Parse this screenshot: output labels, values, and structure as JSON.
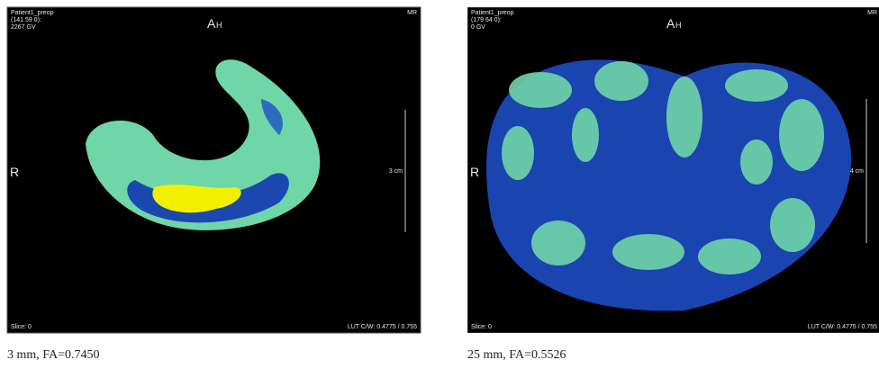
{
  "panels": [
    {
      "patient": "Patient1_preop",
      "coords": "(141 59 0):",
      "voxel": "2267 GV",
      "orientation_top": "A",
      "orientation_top_sub": "H",
      "modality": "MR",
      "orientation_left": "R",
      "scale": "3 cm",
      "slice": "Slice: 0",
      "lut": "LUT C/W: 0.4775 / 0.755",
      "caption": "3 mm, FA=0.7450"
    },
    {
      "patient": "Patient1_preop",
      "coords": "(179 64 0):",
      "voxel": "0 GV",
      "orientation_top": "A",
      "orientation_top_sub": "H",
      "modality": "MR",
      "orientation_left": "R",
      "scale": "4 cm",
      "slice": "Slice: 0",
      "lut": "LUT C/W: 0.4775 / 0.755",
      "caption": "25 mm, FA=0.5526"
    }
  ]
}
